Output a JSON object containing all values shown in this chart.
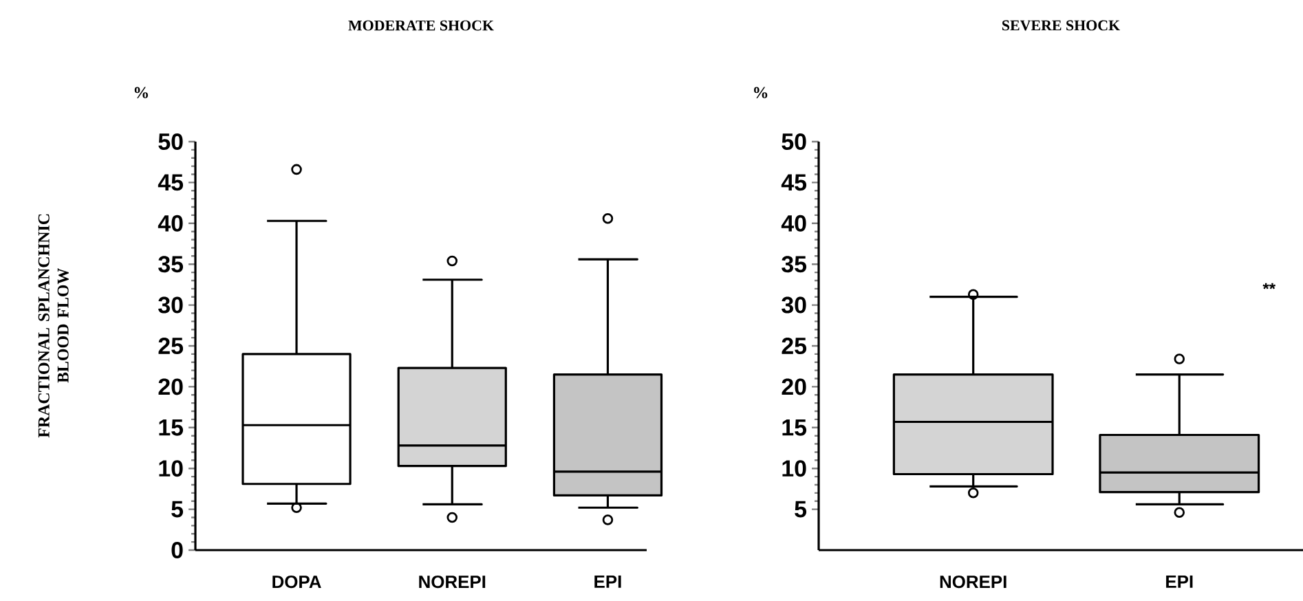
{
  "chart_data": [
    {
      "type": "box",
      "title": "MODERATE SHOCK",
      "ylabel": "FRACTIONAL SPLANCHNIC BLOOD FLOW",
      "annotations": [
        "%"
      ],
      "categories": [
        "DOPA",
        "NOREPI",
        "EPI"
      ],
      "colors": [
        "#ffffff",
        "#d4d4d4",
        "#c4c4c4"
      ],
      "boxes": [
        {
          "low": 5.7,
          "q1": 8.1,
          "median": 15.3,
          "q3": 24.0,
          "high": 40.3,
          "outliers": [
            46.6,
            5.2
          ]
        },
        {
          "low": 5.6,
          "q1": 10.3,
          "median": 12.8,
          "q3": 22.3,
          "high": 33.1,
          "outliers": [
            35.4,
            4.0
          ]
        },
        {
          "low": 5.2,
          "q1": 6.7,
          "median": 9.6,
          "q3": 21.5,
          "high": 35.6,
          "outliers": [
            40.6,
            3.7
          ]
        }
      ],
      "ylim": [
        0,
        50
      ],
      "yticks": [
        0,
        5,
        10,
        15,
        20,
        25,
        30,
        35,
        40,
        45,
        50
      ]
    },
    {
      "type": "box",
      "title": "SEVERE SHOCK",
      "annotations": [
        "%",
        "**"
      ],
      "categories": [
        "NOREPI",
        "EPI"
      ],
      "colors": [
        "#d4d4d4",
        "#c4c4c4"
      ],
      "boxes": [
        {
          "low": 7.8,
          "q1": 9.3,
          "median": 15.7,
          "q3": 21.5,
          "high": 31.0,
          "outliers": [
            31.3,
            7.0
          ]
        },
        {
          "low": 5.6,
          "q1": 7.1,
          "median": 9.5,
          "q3": 14.1,
          "high": 21.5,
          "outliers": [
            23.4,
            4.6
          ]
        }
      ],
      "ylim": [
        0,
        50
      ],
      "yticks": [
        5,
        10,
        15,
        20,
        25,
        30,
        35,
        40,
        45,
        50
      ]
    }
  ]
}
